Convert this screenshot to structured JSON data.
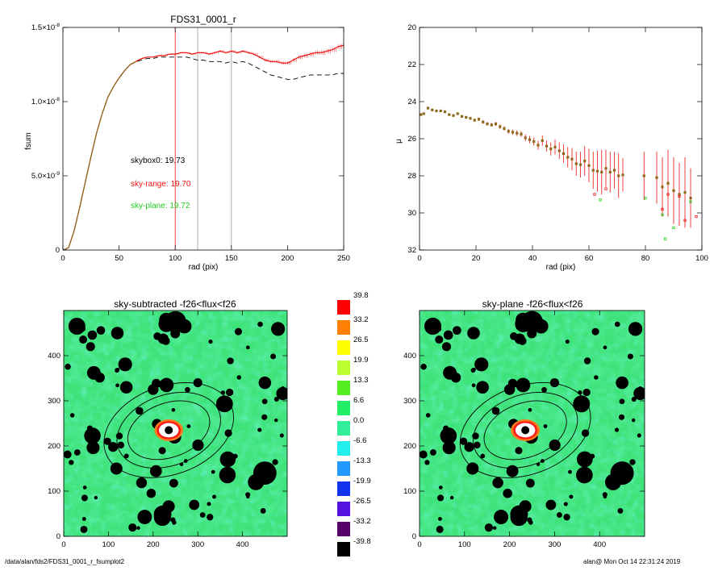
{
  "footer": {
    "path": "/data/alan/fds2/FDS31_0001_r_fsumplot2",
    "user_date": "alan@  Mon Oct 14 22:31:24 2019"
  },
  "colors": {
    "model_curve": "#8b6a1c",
    "sky_range": "#ee1010",
    "sky_plane": "#22cc22",
    "skybox": "#000000",
    "grid_line": "#999999"
  },
  "chart_data": [
    {
      "type": "line",
      "title": "FDS31_0001_r",
      "xlabel": "rad (pix)",
      "ylabel": "fsum",
      "xlim": [
        0,
        250
      ],
      "ylim": [
        0,
        1.5e-08
      ],
      "x_ticks": [
        0,
        50,
        100,
        150,
        200,
        250
      ],
      "y_ticks": [
        {
          "value": 0,
          "label": "0"
        },
        {
          "value": 5e-09,
          "label": "5.0×10",
          "exp": "-9"
        },
        {
          "value": 1e-08,
          "label": "1.0×10",
          "exp": "-8"
        },
        {
          "value": 1.5e-08,
          "label": "1.5×10",
          "exp": "-8"
        }
      ],
      "vertical_lines": [
        {
          "x": 100,
          "color": "#ee1010"
        },
        {
          "x": 120,
          "color": "#999999"
        },
        {
          "x": 150,
          "color": "#999999"
        }
      ],
      "annotations": [
        {
          "text": "skybox0: 19.73",
          "color": "#000000"
        },
        {
          "text": "sky-range: 19.70",
          "color": "#ee1010"
        },
        {
          "text": "sky-plane: 19.72",
          "color": "#22cc22"
        }
      ],
      "series": [
        {
          "color": "#ee1010",
          "style": "solid-with-errorbars",
          "x": [
            0,
            5,
            10,
            15,
            20,
            25,
            30,
            35,
            40,
            45,
            50,
            55,
            60,
            65,
            70,
            75,
            80,
            85,
            90,
            95,
            100,
            105,
            110,
            115,
            120,
            125,
            130,
            135,
            140,
            145,
            150,
            155,
            160,
            165,
            170,
            175,
            180,
            185,
            190,
            195,
            200,
            205,
            210,
            215,
            220,
            225,
            230,
            235,
            240,
            245,
            250
          ],
          "y": [
            0,
            1.5e-10,
            1.3e-09,
            2.9e-09,
            4.6e-09,
            6.3e-09,
            7.9e-09,
            9.2e-09,
            1.03e-08,
            1.1e-08,
            1.16e-08,
            1.21e-08,
            1.25e-08,
            1.27e-08,
            1.29e-08,
            1.3e-08,
            1.3e-08,
            1.31e-08,
            1.31e-08,
            1.32e-08,
            1.32e-08,
            1.33e-08,
            1.33e-08,
            1.32e-08,
            1.33e-08,
            1.33e-08,
            1.32e-08,
            1.33e-08,
            1.34e-08,
            1.33e-08,
            1.34e-08,
            1.33e-08,
            1.34e-08,
            1.33e-08,
            1.32e-08,
            1.3e-08,
            1.28e-08,
            1.27e-08,
            1.27e-08,
            1.26e-08,
            1.26e-08,
            1.28e-08,
            1.3e-08,
            1.31e-08,
            1.32e-08,
            1.33e-08,
            1.33e-08,
            1.34e-08,
            1.35e-08,
            1.37e-08,
            1.38e-08
          ],
          "err": [
            0,
            0,
            0,
            0,
            0,
            0,
            0,
            0,
            0,
            0,
            0,
            1e-11,
            2e-11,
            2e-11,
            3e-11,
            3e-11,
            3e-11,
            4e-11,
            4e-11,
            4e-11,
            5e-11,
            5e-11,
            5e-11,
            5e-11,
            6e-11,
            6e-11,
            6e-11,
            7e-11,
            7e-11,
            7e-11,
            8e-11,
            8e-11,
            8e-11,
            9e-11,
            9e-11,
            1e-10,
            1e-10,
            1e-10,
            1.1e-10,
            1.1e-10,
            1.2e-10,
            1.2e-10,
            1.3e-10,
            1.3e-10,
            1.4e-10,
            1.4e-10,
            1.5e-10,
            1.5e-10,
            1.6e-10,
            1.7e-10,
            1.8e-10
          ]
        },
        {
          "color": "#000000",
          "style": "dashed",
          "x": [
            0,
            5,
            10,
            15,
            20,
            25,
            30,
            35,
            40,
            45,
            50,
            55,
            60,
            65,
            70,
            75,
            80,
            85,
            90,
            95,
            100,
            105,
            110,
            115,
            120,
            125,
            130,
            135,
            140,
            145,
            150,
            155,
            160,
            165,
            170,
            175,
            180,
            185,
            190,
            195,
            200,
            205,
            210,
            215,
            220,
            225,
            230,
            235,
            240,
            245,
            250
          ],
          "y": [
            0,
            1.5e-10,
            1.3e-09,
            2.9e-09,
            4.6e-09,
            6.3e-09,
            7.9e-09,
            9.2e-09,
            1.03e-08,
            1.1e-08,
            1.16e-08,
            1.21e-08,
            1.25e-08,
            1.27e-08,
            1.28e-08,
            1.29e-08,
            1.29e-08,
            1.3e-08,
            1.3e-08,
            1.3e-08,
            1.3e-08,
            1.3e-08,
            1.3e-08,
            1.29e-08,
            1.28e-08,
            1.28e-08,
            1.27e-08,
            1.27e-08,
            1.27e-08,
            1.26e-08,
            1.27e-08,
            1.26e-08,
            1.27e-08,
            1.26e-08,
            1.24e-08,
            1.22e-08,
            1.2e-08,
            1.18e-08,
            1.17e-08,
            1.16e-08,
            1.15e-08,
            1.15e-08,
            1.16e-08,
            1.17e-08,
            1.18e-08,
            1.18e-08,
            1.18e-08,
            1.18e-08,
            1.18e-08,
            1.19e-08,
            1.19e-08
          ]
        },
        {
          "color": "#8b6a1c",
          "style": "solid",
          "x": [
            0,
            5,
            10,
            15,
            20,
            25,
            30,
            35,
            40,
            45,
            50,
            55,
            60,
            65
          ],
          "y": [
            0,
            1.5e-10,
            1.3e-09,
            2.9e-09,
            4.6e-09,
            6.3e-09,
            7.9e-09,
            9.2e-09,
            1.03e-08,
            1.1e-08,
            1.16e-08,
            1.21e-08,
            1.25e-08,
            1.27e-08
          ]
        }
      ]
    },
    {
      "type": "scatter",
      "xlabel": "rad (pix)",
      "ylabel": "μ",
      "xlim": [
        0,
        100
      ],
      "ylim": [
        32,
        20
      ],
      "x_ticks": [
        0,
        20,
        40,
        60,
        80,
        100
      ],
      "y_ticks": [
        20,
        22,
        24,
        26,
        28,
        30,
        32
      ],
      "points": {
        "x": [
          0.5,
          1.5,
          3,
          4.5,
          6,
          7.5,
          9,
          10.5,
          12,
          13.5,
          15,
          16.5,
          18,
          19.5,
          21,
          22.5,
          24,
          25.5,
          27,
          28.5,
          30,
          31.5,
          33,
          34.5,
          36,
          37.5,
          39,
          40.5,
          42,
          43.5,
          45,
          46.5,
          48,
          49.5,
          51,
          52.5,
          54,
          55.5,
          57,
          58.5,
          60,
          61.5,
          63,
          64.5,
          66,
          67.5,
          69,
          70.5,
          72,
          79.5,
          84,
          86,
          88,
          90,
          92,
          94,
          96
        ],
        "y": [
          24.7,
          24.65,
          24.35,
          24.45,
          24.5,
          24.5,
          24.55,
          24.7,
          24.75,
          24.65,
          24.8,
          24.85,
          24.9,
          25.0,
          24.95,
          25.1,
          25.2,
          25.25,
          25.2,
          25.35,
          25.45,
          25.6,
          25.65,
          25.7,
          25.75,
          25.95,
          26.05,
          26.15,
          26.35,
          26.1,
          26.4,
          26.55,
          26.45,
          26.65,
          26.8,
          27.0,
          27.1,
          27.35,
          27.4,
          27.2,
          27.45,
          27.7,
          27.75,
          27.8,
          27.6,
          27.8,
          27.7,
          28.0,
          27.95,
          28.0,
          28.1,
          28.6,
          28.4,
          28.8,
          29.0,
          28.9,
          29.2
        ],
        "err": [
          0.05,
          0.05,
          0.05,
          0.05,
          0.05,
          0.06,
          0.06,
          0.06,
          0.07,
          0.07,
          0.07,
          0.08,
          0.08,
          0.09,
          0.09,
          0.1,
          0.1,
          0.1,
          0.11,
          0.12,
          0.12,
          0.13,
          0.14,
          0.15,
          0.16,
          0.18,
          0.2,
          0.22,
          0.25,
          0.28,
          0.3,
          0.35,
          0.4,
          0.45,
          0.5,
          0.55,
          0.6,
          0.65,
          0.7,
          0.8,
          0.9,
          1.0,
          1.1,
          1.2,
          1.0,
          1.1,
          1.0,
          1.2,
          0.9,
          1.3,
          1.4,
          1.6,
          1.8,
          1.8,
          1.7,
          1.9,
          1.6
        ],
        "color": "#8b6a1c",
        "err_color": "#ee1010"
      },
      "extra_points": {
        "x": [
          62,
          64,
          66,
          80,
          86,
          86,
          87,
          88,
          90,
          92,
          94,
          96,
          98
        ],
        "y": [
          29.0,
          29.3,
          28.7,
          29.2,
          29.8,
          30.1,
          31.4,
          29.0,
          30.8,
          29.1,
          30.4,
          29.4,
          30.2
        ],
        "colors": [
          "#ee1010",
          "#22cc22",
          "#ee1010",
          "#22cc22",
          "#ee1010",
          "#22cc22",
          "#22cc22",
          "#ee1010",
          "#22cc22",
          "#ee1010",
          "#ee1010",
          "#22cc22",
          "#ee1010"
        ]
      }
    },
    {
      "type": "heatmap",
      "title": "sky-subtracted -f26<flux<f26",
      "xlim": [
        0,
        500
      ],
      "ylim": [
        0,
        500
      ],
      "x_ticks": [
        0,
        100,
        200,
        300,
        400
      ],
      "y_ticks": [
        0,
        100,
        200,
        300,
        400
      ],
      "galaxy_center": [
        235,
        235
      ],
      "ellipses": [
        {
          "rx": 95,
          "ry": 60,
          "angle": 20
        },
        {
          "rx": 120,
          "ry": 78,
          "angle": 20
        },
        {
          "rx": 150,
          "ry": 98,
          "angle": 20
        }
      ]
    },
    {
      "type": "heatmap",
      "title": "sky-plane -f26<flux<f26",
      "xlim": [
        0,
        500
      ],
      "ylim": [
        0,
        500
      ],
      "x_ticks": [
        0,
        100,
        200,
        300,
        400
      ],
      "y_ticks": [
        0,
        100,
        200,
        300,
        400
      ],
      "galaxy_center": [
        235,
        235
      ],
      "ellipses": [
        {
          "rx": 95,
          "ry": 60,
          "angle": 20
        },
        {
          "rx": 120,
          "ry": 78,
          "angle": 20
        },
        {
          "rx": 150,
          "ry": 98,
          "angle": 20
        }
      ]
    }
  ],
  "colorbar": {
    "labels": [
      "39.8",
      "33.2",
      "26.5",
      "19.9",
      "13.3",
      "6.6",
      "0.0",
      "-6.6",
      "-13.3",
      "-19.9",
      "-26.5",
      "-33.2",
      "-39.8"
    ],
    "colors": [
      "#ff0000",
      "#ff8000",
      "#ffff00",
      "#bbff33",
      "#55ee22",
      "#22ee66",
      "#33ee99",
      "#22eeee",
      "#2299ff",
      "#1133ee",
      "#5511dd",
      "#550066",
      "#000000"
    ]
  }
}
